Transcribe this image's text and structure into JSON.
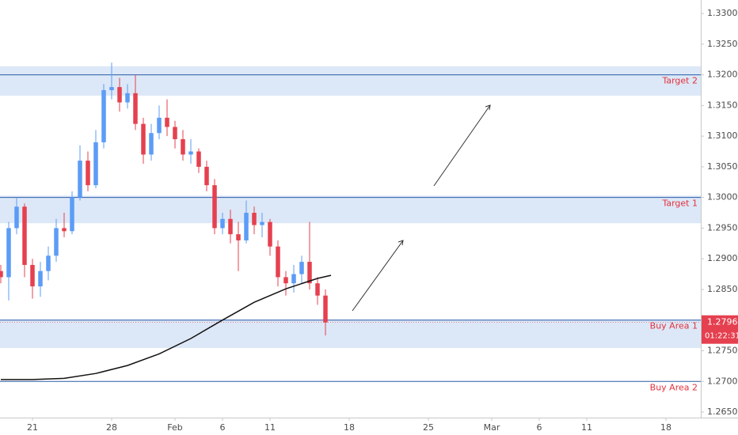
{
  "chart_data": {
    "type": "candlestick",
    "x": [
      -2,
      -1.5,
      -1,
      -0.5,
      0,
      0.5,
      1,
      1.5,
      2,
      2.5,
      3,
      3.5,
      4,
      4.5,
      5,
      5.5,
      6,
      6.5,
      7,
      7.5,
      8,
      8.5,
      9,
      9.5,
      10,
      10.5,
      11,
      11.5,
      12,
      12.5,
      13,
      13.5,
      14,
      14.5,
      15,
      15.5,
      16,
      16.5,
      17,
      17.5,
      18,
      18.5
    ],
    "open": [
      1.288,
      1.287,
      1.295,
      1.2985,
      1.289,
      1.2855,
      1.288,
      1.2905,
      1.295,
      1.2945,
      1.3,
      1.306,
      1.302,
      1.309,
      1.3175,
      1.318,
      1.3155,
      1.317,
      1.312,
      1.307,
      1.3105,
      1.313,
      1.3115,
      1.3095,
      1.307,
      1.3075,
      1.305,
      1.302,
      1.295,
      1.2965,
      1.294,
      1.293,
      1.2975,
      1.2955,
      1.296,
      1.292,
      1.287,
      1.286,
      1.2875,
      1.2895,
      1.286,
      1.284
    ],
    "high": [
      1.289,
      1.296,
      1.3,
      1.299,
      1.29,
      1.2895,
      1.292,
      1.2965,
      1.2975,
      1.301,
      1.3085,
      1.3075,
      1.311,
      1.3185,
      1.322,
      1.3195,
      1.3185,
      1.32,
      1.313,
      1.312,
      1.315,
      1.316,
      1.3125,
      1.311,
      1.3095,
      1.308,
      1.306,
      1.303,
      1.2975,
      1.298,
      1.296,
      1.2995,
      1.2985,
      1.2975,
      1.2965,
      1.293,
      1.288,
      1.289,
      1.2905,
      1.296,
      1.287,
      1.285
    ],
    "low": [
      1.286,
      1.2832,
      1.294,
      1.287,
      1.2835,
      1.2838,
      1.2865,
      1.2895,
      1.2935,
      1.294,
      1.2995,
      1.301,
      1.3015,
      1.308,
      1.316,
      1.314,
      1.3145,
      1.311,
      1.3055,
      1.306,
      1.3095,
      1.31,
      1.308,
      1.306,
      1.3055,
      1.304,
      1.301,
      1.294,
      1.294,
      1.2925,
      1.288,
      1.2925,
      1.294,
      1.2935,
      1.2905,
      1.2855,
      1.284,
      1.2845,
      1.286,
      1.285,
      1.2825,
      1.2775
    ],
    "close": [
      1.287,
      1.295,
      1.2985,
      1.289,
      1.2855,
      1.288,
      1.2905,
      1.295,
      1.2945,
      1.3,
      1.306,
      1.302,
      1.309,
      1.3175,
      1.318,
      1.3155,
      1.317,
      1.312,
      1.307,
      1.3105,
      1.313,
      1.3115,
      1.3095,
      1.307,
      1.3075,
      1.305,
      1.302,
      1.295,
      1.2965,
      1.294,
      1.293,
      1.2975,
      1.2955,
      1.296,
      1.292,
      1.287,
      1.286,
      1.2875,
      1.2895,
      1.286,
      1.284,
      1.27962
    ],
    "up_color": "#5b9cf6",
    "down_color": "#e5404f",
    "moving_average": {
      "color": "#111111",
      "x": [
        -2,
        0,
        2,
        4,
        6,
        8,
        10,
        12,
        14,
        16,
        18,
        18.85
      ],
      "values": [
        1.2703,
        1.2703,
        1.2705,
        1.2713,
        1.2726,
        1.2745,
        1.277,
        1.28,
        1.2829,
        1.2851,
        1.2868,
        1.2873
      ]
    },
    "levels": [
      {
        "label": "Target 2",
        "level": 1.32,
        "zone": [
          1.3166,
          1.3214
        ]
      },
      {
        "label": "Target 1",
        "level": 1.3,
        "zone": [
          1.2958,
          1.3003
        ]
      },
      {
        "label": "Buy Area 1",
        "level": 1.28,
        "zone": [
          1.27545,
          1.2801
        ]
      },
      {
        "label": "Buy Area 2",
        "level": 1.27
      }
    ],
    "level_color": "#2a5aa8",
    "zone_color": "#dce8f7",
    "label_color": "#e5303c",
    "last_price": {
      "value": 1.27962,
      "label": "1.27962"
    },
    "countdown": "01:22:31",
    "xlim": [
      -2.05,
      42.2
    ],
    "xticks": [
      {
        "value": 0,
        "label": "21"
      },
      {
        "value": 5,
        "label": "28"
      },
      {
        "value": 9,
        "label": "Feb"
      },
      {
        "value": 12,
        "label": "6"
      },
      {
        "value": 15,
        "label": "11"
      },
      {
        "value": 20,
        "label": "18"
      },
      {
        "value": 25,
        "label": "25"
      },
      {
        "value": 29,
        "label": "Mar"
      },
      {
        "value": 32,
        "label": "6"
      },
      {
        "value": 35,
        "label": "11"
      },
      {
        "value": 40,
        "label": "18"
      }
    ],
    "ylim": [
      1.2641,
      1.3322
    ],
    "yticks": [
      {
        "value": 1.33,
        "label": "1.33000"
      },
      {
        "value": 1.325,
        "label": "1.32500"
      },
      {
        "value": 1.32,
        "label": "1.32000"
      },
      {
        "value": 1.315,
        "label": "1.31500"
      },
      {
        "value": 1.31,
        "label": "1.31000"
      },
      {
        "value": 1.305,
        "label": "1.30500"
      },
      {
        "value": 1.3,
        "label": "1.30000"
      },
      {
        "value": 1.295,
        "label": "1.29500"
      },
      {
        "value": 1.29,
        "label": "1.29000"
      },
      {
        "value": 1.285,
        "label": "1.28500"
      },
      {
        "value": 1.28,
        "label": "1.28000"
      },
      {
        "value": 1.275,
        "label": "1.27500"
      },
      {
        "value": 1.27,
        "label": "1.27000"
      },
      {
        "value": 1.265,
        "label": "1.26500"
      }
    ],
    "grid": false
  }
}
